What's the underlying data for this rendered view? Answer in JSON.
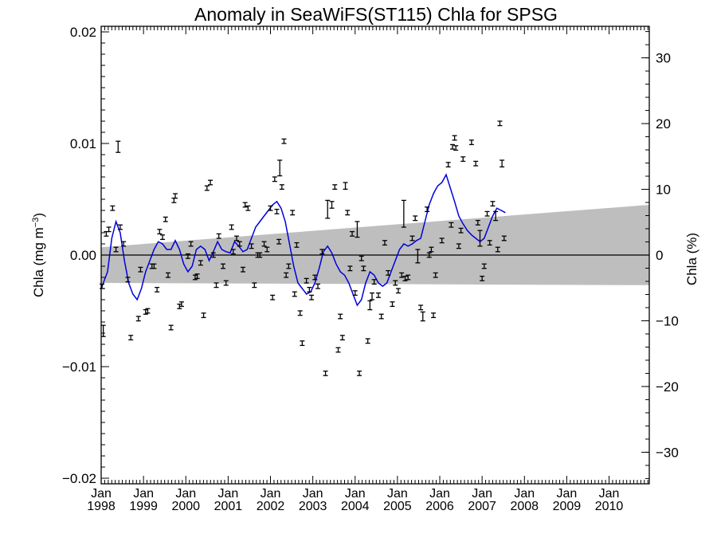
{
  "chart_data": {
    "type": "scatter",
    "title": "Anomaly in SeaWiFS(ST115) Chla for SPSG",
    "ylabel_left": "Chla (mg m",
    "ylabel_left_sup": "−3",
    "ylabel_left_close": ")",
    "ylabel_right": "Chla (%)",
    "xlabel": "",
    "xlim": [
      1998.0,
      2010.95
    ],
    "ylim": [
      -0.0205,
      0.0205
    ],
    "ylim_right": [
      -34.8,
      34.8
    ],
    "grid": false,
    "x_ticks": [
      {
        "month": "Jan",
        "year": "1998",
        "x": 1998.0
      },
      {
        "month": "Jan",
        "year": "1999",
        "x": 1999.0
      },
      {
        "month": "Jan",
        "year": "2000",
        "x": 2000.0
      },
      {
        "month": "Jan",
        "year": "2001",
        "x": 2001.0
      },
      {
        "month": "Jan",
        "year": "2002",
        "x": 2002.0
      },
      {
        "month": "Jan",
        "year": "2003",
        "x": 2003.0
      },
      {
        "month": "Jan",
        "year": "2004",
        "x": 2004.0
      },
      {
        "month": "Jan",
        "year": "2005",
        "x": 2005.0
      },
      {
        "month": "Jan",
        "year": "2006",
        "x": 2006.0
      },
      {
        "month": "Jan",
        "year": "2007",
        "x": 2007.0
      },
      {
        "month": "Jan",
        "year": "2008",
        "x": 2008.0
      },
      {
        "month": "Jan",
        "year": "2009",
        "x": 2009.0
      },
      {
        "month": "Jan",
        "year": "2010",
        "x": 2010.0
      }
    ],
    "y_ticks_left": [
      {
        "label": "0.02",
        "value": 0.02
      },
      {
        "label": "0.01",
        "value": 0.01
      },
      {
        "label": "0.00",
        "value": 0.0
      },
      {
        "label": "−0.01",
        "value": -0.01
      },
      {
        "label": "−0.02",
        "value": -0.02
      }
    ],
    "y_ticks_right": [
      {
        "label": "30",
        "value": 30
      },
      {
        "label": "20",
        "value": 20
      },
      {
        "label": "10",
        "value": 10
      },
      {
        "label": "0",
        "value": 0
      },
      {
        "label": "−10",
        "value": -10
      },
      {
        "label": "−20",
        "value": -20
      },
      {
        "label": "−30",
        "value": -30
      }
    ],
    "zero_line": 0.0,
    "uncertainty_band": {
      "upper": [
        [
          1998.0,
          0.0007
        ],
        [
          2010.95,
          0.0045
        ]
      ],
      "lower": [
        [
          1998.0,
          -0.0025
        ],
        [
          2010.95,
          -0.0027
        ]
      ]
    },
    "colors": {
      "line": "#0000dd",
      "band": "#bebebe",
      "points": "#000000"
    },
    "points": [
      [
        1998.02,
        -0.0028,
        0.0002
      ],
      [
        1998.05,
        -0.0068,
        0.0005
      ],
      [
        1998.12,
        0.0019,
        0.0002
      ],
      [
        1998.18,
        0.0023,
        0.0002
      ],
      [
        1998.27,
        0.0042,
        0.0002
      ],
      [
        1998.35,
        0.0005,
        0.0002
      ],
      [
        1998.4,
        0.0097,
        0.0005
      ],
      [
        1998.45,
        0.0025,
        0.0002
      ],
      [
        1998.53,
        0.001,
        0.0002
      ],
      [
        1998.63,
        -0.0022,
        0.0002
      ],
      [
        1998.7,
        -0.0074,
        0.0002
      ],
      [
        1998.88,
        -0.0057,
        0.0002
      ],
      [
        1998.93,
        -0.0013,
        0.0002
      ],
      [
        1999.05,
        -0.0051,
        0.0002
      ],
      [
        1999.1,
        -0.005,
        0.0002
      ],
      [
        1999.2,
        -0.001,
        0.0002
      ],
      [
        1999.25,
        -0.001,
        0.0002
      ],
      [
        1999.32,
        -0.0031,
        0.0002
      ],
      [
        1999.38,
        0.0021,
        0.0002
      ],
      [
        1999.45,
        0.0016,
        0.0002
      ],
      [
        1999.52,
        0.0032,
        0.0002
      ],
      [
        1999.58,
        -0.0018,
        0.0002
      ],
      [
        1999.65,
        -0.0065,
        0.0002
      ],
      [
        1999.72,
        0.0049,
        0.0002
      ],
      [
        1999.75,
        0.0053,
        0.0002
      ],
      [
        1999.85,
        -0.0046,
        0.0002
      ],
      [
        1999.9,
        -0.0044,
        0.0002
      ],
      [
        2000.05,
        -0.0001,
        0.0002
      ],
      [
        2000.12,
        0.001,
        0.0002
      ],
      [
        2000.22,
        -0.002,
        0.0002
      ],
      [
        2000.27,
        -0.0019,
        0.0002
      ],
      [
        2000.35,
        -0.0007,
        0.0002
      ],
      [
        2000.42,
        -0.0054,
        0.0002
      ],
      [
        2000.5,
        0.006,
        0.0002
      ],
      [
        2000.58,
        0.0065,
        0.0002
      ],
      [
        2000.65,
        0.0,
        0.0002
      ],
      [
        2000.72,
        -0.0027,
        0.0002
      ],
      [
        2000.78,
        0.0017,
        0.0002
      ],
      [
        2000.88,
        -0.001,
        0.0002
      ],
      [
        2000.95,
        -0.0025,
        0.0002
      ],
      [
        2001.08,
        0.0025,
        0.0002
      ],
      [
        2001.12,
        0.0003,
        0.0002
      ],
      [
        2001.2,
        0.0015,
        0.0002
      ],
      [
        2001.27,
        0.001,
        0.0002
      ],
      [
        2001.35,
        -0.0013,
        0.0002
      ],
      [
        2001.4,
        0.0045,
        0.0002
      ],
      [
        2001.47,
        0.0042,
        0.0002
      ],
      [
        2001.55,
        0.0008,
        0.0002
      ],
      [
        2001.62,
        -0.0027,
        0.0002
      ],
      [
        2001.7,
        0.0,
        0.0002
      ],
      [
        2001.75,
        0.0,
        0.0002
      ],
      [
        2001.85,
        0.001,
        0.0002
      ],
      [
        2001.92,
        0.0005,
        0.0002
      ],
      [
        2002.0,
        0.0042,
        0.0002
      ],
      [
        2002.05,
        -0.0038,
        0.0002
      ],
      [
        2002.1,
        0.0068,
        0.0002
      ],
      [
        2002.15,
        0.0039,
        0.0002
      ],
      [
        2002.2,
        0.0012,
        0.0002
      ],
      [
        2002.22,
        0.0078,
        0.0007
      ],
      [
        2002.27,
        0.0061,
        0.0002
      ],
      [
        2002.32,
        0.0102,
        0.0002
      ],
      [
        2002.37,
        -0.0018,
        0.0002
      ],
      [
        2002.43,
        -0.001,
        0.0002
      ],
      [
        2002.52,
        0.0038,
        0.0002
      ],
      [
        2002.57,
        -0.0035,
        0.0002
      ],
      [
        2002.62,
        0.0009,
        0.0002
      ],
      [
        2002.7,
        -0.0052,
        0.0002
      ],
      [
        2002.75,
        -0.0079,
        0.0002
      ],
      [
        2002.85,
        -0.0023,
        0.0002
      ],
      [
        2002.92,
        -0.0031,
        0.0002
      ],
      [
        2002.97,
        -0.0038,
        0.0002
      ],
      [
        2003.05,
        -0.002,
        0.0002
      ],
      [
        2003.12,
        -0.0028,
        0.0002
      ],
      [
        2003.22,
        0.0003,
        0.0002
      ],
      [
        2003.3,
        -0.0106,
        0.0002
      ],
      [
        2003.35,
        0.0041,
        0.0008
      ],
      [
        2003.45,
        0.0045,
        0.0003
      ],
      [
        2003.52,
        0.0061,
        0.0002
      ],
      [
        2003.6,
        -0.0085,
        0.0002
      ],
      [
        2003.65,
        -0.0055,
        0.0002
      ],
      [
        2003.7,
        -0.0074,
        0.0002
      ],
      [
        2003.77,
        0.0062,
        0.0003
      ],
      [
        2003.82,
        0.0038,
        0.0002
      ],
      [
        2003.88,
        -0.0012,
        0.0002
      ],
      [
        2003.93,
        0.0019,
        0.0002
      ],
      [
        2004.0,
        -0.0034,
        0.0002
      ],
      [
        2004.05,
        0.0023,
        0.0007
      ],
      [
        2004.1,
        -0.0106,
        0.0002
      ],
      [
        2004.15,
        -0.0003,
        0.0002
      ],
      [
        2004.2,
        -0.0012,
        0.0002
      ],
      [
        2004.3,
        -0.0077,
        0.0002
      ],
      [
        2004.35,
        -0.0045,
        0.0004
      ],
      [
        2004.4,
        -0.0037,
        0.0003
      ],
      [
        2004.45,
        -0.0024,
        0.0002
      ],
      [
        2004.55,
        -0.0036,
        0.0002
      ],
      [
        2004.62,
        -0.0055,
        0.0002
      ],
      [
        2004.7,
        0.0011,
        0.0002
      ],
      [
        2004.78,
        -0.0016,
        0.0002
      ],
      [
        2004.88,
        -0.0044,
        0.0002
      ],
      [
        2004.95,
        -0.0025,
        0.0002
      ],
      [
        2005.02,
        -0.0032,
        0.0002
      ],
      [
        2005.1,
        -0.0018,
        0.0002
      ],
      [
        2005.15,
        0.0037,
        0.0012
      ],
      [
        2005.18,
        -0.0021,
        0.0002
      ],
      [
        2005.25,
        -0.002,
        0.0002
      ],
      [
        2005.35,
        0.0015,
        0.0002
      ],
      [
        2005.42,
        0.0033,
        0.0002
      ],
      [
        2005.48,
        -0.0001,
        0.0006
      ],
      [
        2005.55,
        -0.0047,
        0.0002
      ],
      [
        2005.6,
        -0.0055,
        0.0004
      ],
      [
        2005.7,
        0.0041,
        0.0002
      ],
      [
        2005.75,
        0.0,
        0.0002
      ],
      [
        2005.8,
        0.0005,
        0.0002
      ],
      [
        2005.85,
        -0.0054,
        0.0002
      ],
      [
        2005.9,
        -0.0018,
        0.0002
      ],
      [
        2006.05,
        0.0013,
        0.0002
      ],
      [
        2006.2,
        0.0081,
        0.0002
      ],
      [
        2006.27,
        0.0027,
        0.0002
      ],
      [
        2006.3,
        0.0097,
        0.0002
      ],
      [
        2006.35,
        0.0105,
        0.0002
      ],
      [
        2006.38,
        0.0096,
        0.0002
      ],
      [
        2006.45,
        0.0008,
        0.0002
      ],
      [
        2006.5,
        0.0022,
        0.0002
      ],
      [
        2006.55,
        0.0086,
        0.0002
      ],
      [
        2006.75,
        0.0101,
        0.0002
      ],
      [
        2006.85,
        0.0082,
        0.0002
      ],
      [
        2006.9,
        0.0029,
        0.0002
      ],
      [
        2006.95,
        0.0015,
        0.0007
      ],
      [
        2007.0,
        -0.0021,
        0.0002
      ],
      [
        2007.05,
        -0.001,
        0.0002
      ],
      [
        2007.12,
        0.0037,
        0.0002
      ],
      [
        2007.18,
        0.0011,
        0.0002
      ],
      [
        2007.25,
        0.0046,
        0.0002
      ],
      [
        2007.32,
        0.0035,
        0.0004
      ],
      [
        2007.37,
        0.0005,
        0.0002
      ],
      [
        2007.42,
        0.0118,
        0.0002
      ],
      [
        2007.47,
        0.0082,
        0.0003
      ],
      [
        2007.52,
        0.0015,
        0.0002
      ]
    ],
    "line": [
      [
        1998.0,
        -0.003
      ],
      [
        1998.15,
        -0.0015
      ],
      [
        1998.25,
        0.0015
      ],
      [
        1998.35,
        0.003
      ],
      [
        1998.45,
        0.002
      ],
      [
        1998.55,
        -0.0005
      ],
      [
        1998.65,
        -0.0025
      ],
      [
        1998.75,
        -0.0035
      ],
      [
        1998.85,
        -0.004
      ],
      [
        1998.95,
        -0.003
      ],
      [
        1999.05,
        -0.0015
      ],
      [
        1999.15,
        -0.0005
      ],
      [
        1999.25,
        0.0005
      ],
      [
        1999.35,
        0.0012
      ],
      [
        1999.45,
        0.001
      ],
      [
        1999.55,
        0.0005
      ],
      [
        1999.65,
        0.0005
      ],
      [
        1999.75,
        0.0013
      ],
      [
        1999.85,
        0.0005
      ],
      [
        1999.95,
        -0.0008
      ],
      [
        2000.05,
        -0.0015
      ],
      [
        2000.15,
        -0.001
      ],
      [
        2000.25,
        0.0005
      ],
      [
        2000.35,
        0.0008
      ],
      [
        2000.45,
        0.0005
      ],
      [
        2000.55,
        -0.0005
      ],
      [
        2000.65,
        0.0003
      ],
      [
        2000.75,
        0.0012
      ],
      [
        2000.85,
        0.0005
      ],
      [
        2000.95,
        0.0003
      ],
      [
        2001.05,
        0.0002
      ],
      [
        2001.15,
        0.0012
      ],
      [
        2001.25,
        0.0008
      ],
      [
        2001.35,
        0.0003
      ],
      [
        2001.45,
        0.0005
      ],
      [
        2001.55,
        0.0015
      ],
      [
        2001.65,
        0.0025
      ],
      [
        2001.75,
        0.003
      ],
      [
        2001.85,
        0.0035
      ],
      [
        2001.95,
        0.004
      ],
      [
        2002.05,
        0.0045
      ],
      [
        2002.15,
        0.0048
      ],
      [
        2002.25,
        0.0042
      ],
      [
        2002.35,
        0.003
      ],
      [
        2002.45,
        0.001
      ],
      [
        2002.55,
        -0.001
      ],
      [
        2002.65,
        -0.0025
      ],
      [
        2002.75,
        -0.003
      ],
      [
        2002.85,
        -0.0035
      ],
      [
        2002.95,
        -0.0033
      ],
      [
        2003.05,
        -0.0025
      ],
      [
        2003.15,
        -0.0012
      ],
      [
        2003.25,
        0.0003
      ],
      [
        2003.35,
        0.0008
      ],
      [
        2003.45,
        0.0002
      ],
      [
        2003.55,
        -0.0008
      ],
      [
        2003.65,
        -0.0015
      ],
      [
        2003.75,
        -0.0018
      ],
      [
        2003.85,
        -0.0025
      ],
      [
        2003.95,
        -0.0035
      ],
      [
        2004.05,
        -0.0045
      ],
      [
        2004.15,
        -0.004
      ],
      [
        2004.25,
        -0.0025
      ],
      [
        2004.35,
        -0.0015
      ],
      [
        2004.45,
        -0.0018
      ],
      [
        2004.55,
        -0.0025
      ],
      [
        2004.65,
        -0.0028
      ],
      [
        2004.75,
        -0.0025
      ],
      [
        2004.85,
        -0.0015
      ],
      [
        2004.95,
        -0.0005
      ],
      [
        2005.05,
        0.0005
      ],
      [
        2005.15,
        0.001
      ],
      [
        2005.25,
        0.0008
      ],
      [
        2005.35,
        0.001
      ],
      [
        2005.45,
        0.0013
      ],
      [
        2005.55,
        0.0015
      ],
      [
        2005.65,
        0.003
      ],
      [
        2005.75,
        0.0045
      ],
      [
        2005.85,
        0.0055
      ],
      [
        2005.95,
        0.0062
      ],
      [
        2006.05,
        0.0065
      ],
      [
        2006.15,
        0.0072
      ],
      [
        2006.25,
        0.006
      ],
      [
        2006.35,
        0.0048
      ],
      [
        2006.45,
        0.0035
      ],
      [
        2006.55,
        0.0028
      ],
      [
        2006.65,
        0.0022
      ],
      [
        2006.75,
        0.0018
      ],
      [
        2006.85,
        0.0015
      ],
      [
        2006.95,
        0.0012
      ],
      [
        2007.05,
        0.0015
      ],
      [
        2007.15,
        0.0025
      ],
      [
        2007.25,
        0.0035
      ],
      [
        2007.35,
        0.0042
      ],
      [
        2007.45,
        0.004
      ],
      [
        2007.55,
        0.0038
      ]
    ]
  }
}
